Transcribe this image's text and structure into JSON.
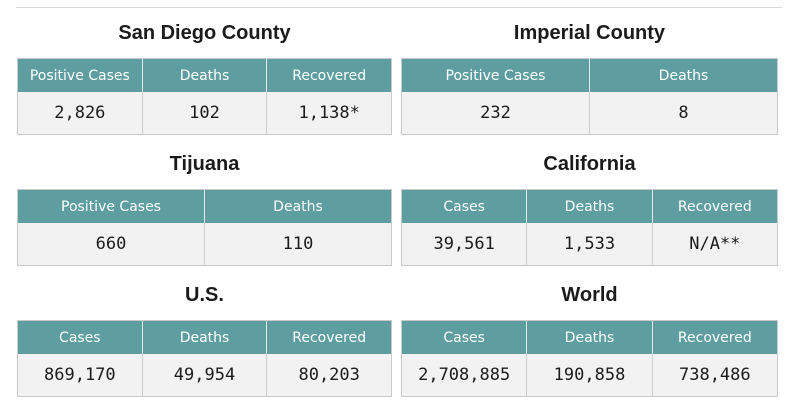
{
  "panels": [
    {
      "title": "San Diego County",
      "headers": [
        "Positive Cases",
        "Deaths",
        "Recovered"
      ],
      "values": [
        "2,826",
        "102",
        "1,138*"
      ]
    },
    {
      "title": "Imperial County",
      "headers": [
        "Positive Cases",
        "Deaths"
      ],
      "values": [
        "232",
        "8"
      ]
    },
    {
      "title": "Tijuana",
      "headers": [
        "Positive Cases",
        "Deaths"
      ],
      "values": [
        "660",
        "110"
      ]
    },
    {
      "title": "California",
      "headers": [
        "Cases",
        "Deaths",
        "Recovered"
      ],
      "values": [
        "39,561",
        "1,533",
        "N/A**"
      ]
    },
    {
      "title": "U.S.",
      "headers": [
        "Cases",
        "Deaths",
        "Recovered"
      ],
      "values": [
        "869,170",
        "49,954",
        "80,203"
      ]
    },
    {
      "title": "World",
      "headers": [
        "Cases",
        "Deaths",
        "Recovered"
      ],
      "values": [
        "2,708,885",
        "190,858",
        "738,486"
      ]
    }
  ]
}
